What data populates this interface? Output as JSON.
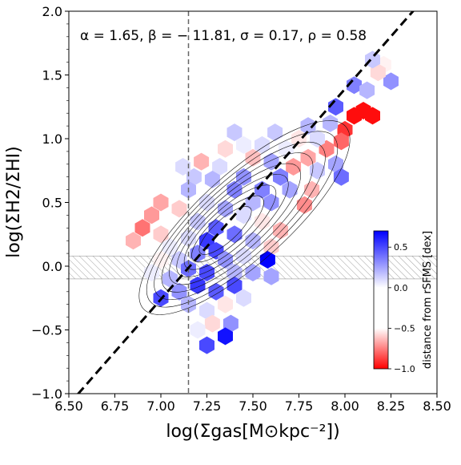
{
  "chart_data": {
    "type": "heatmap",
    "plot_style": "hexbin with contours",
    "xlabel": "log(Σgas[M⊙kpc⁻²])",
    "ylabel": "log(ΣH2/ΣHI)",
    "xlim": [
      6.5,
      8.5
    ],
    "ylim": [
      -1.0,
      2.0
    ],
    "x_ticks": [
      "6.50",
      "6.75",
      "7.00",
      "7.25",
      "7.50",
      "7.75",
      "8.00",
      "8.25",
      "8.50"
    ],
    "y_ticks": [
      "−1.0",
      "−0.5",
      "0.0",
      "0.5",
      "1.0",
      "1.5",
      "2.0"
    ],
    "annotation": "α = 1.65, β = − 11.81, σ = 0.17, ρ = 0.58",
    "fit_line": {
      "slope": 1.65,
      "intercept": -11.81,
      "style": "black dashed"
    },
    "vertical_line": {
      "x": 7.15,
      "style": "gray dashed"
    },
    "hatched_band": {
      "y_range": [
        -0.1,
        0.08
      ]
    },
    "colorbar": {
      "label": "distance from rSFMS [dex]",
      "range": [
        -1.0,
        0.7
      ],
      "ticks": [
        "0.5",
        "0.0",
        "−0.5",
        "−1.0"
      ],
      "colormap": "bwr"
    },
    "bins": [
      {
        "x": 8.25,
        "y": 1.45,
        "v": 0.3
      },
      {
        "x": 8.21,
        "y": 1.58,
        "v": -0.05
      },
      {
        "x": 8.18,
        "y": 1.52,
        "v": -0.15
      },
      {
        "x": 8.15,
        "y": 1.62,
        "v": 0.15
      },
      {
        "x": 8.05,
        "y": 1.42,
        "v": 0.35
      },
      {
        "x": 8.12,
        "y": 1.38,
        "v": 0.2
      },
      {
        "x": 8.1,
        "y": 1.22,
        "v": -0.95
      },
      {
        "x": 8.15,
        "y": 1.18,
        "v": -0.95
      },
      {
        "x": 8.05,
        "y": 1.18,
        "v": -0.95
      },
      {
        "x": 8.0,
        "y": 1.07,
        "v": -0.8
      },
      {
        "x": 7.95,
        "y": 1.25,
        "v": 0.45
      },
      {
        "x": 7.92,
        "y": 1.12,
        "v": 0.2
      },
      {
        "x": 7.98,
        "y": 0.98,
        "v": -0.6
      },
      {
        "x": 7.9,
        "y": 0.92,
        "v": -0.5
      },
      {
        "x": 7.85,
        "y": 1.0,
        "v": 0.1
      },
      {
        "x": 7.95,
        "y": 0.8,
        "v": 0.25
      },
      {
        "x": 7.98,
        "y": 0.7,
        "v": 0.4
      },
      {
        "x": 7.8,
        "y": 1.1,
        "v": 0.2
      },
      {
        "x": 7.75,
        "y": 1.0,
        "v": -0.1
      },
      {
        "x": 7.8,
        "y": 0.85,
        "v": -0.35
      },
      {
        "x": 7.85,
        "y": 0.75,
        "v": 0.15
      },
      {
        "x": 7.72,
        "y": 0.78,
        "v": -0.4
      },
      {
        "x": 7.68,
        "y": 0.92,
        "v": 0.05
      },
      {
        "x": 7.62,
        "y": 1.05,
        "v": 0.15
      },
      {
        "x": 7.55,
        "y": 0.95,
        "v": 0.1
      },
      {
        "x": 7.6,
        "y": 0.82,
        "v": 0.25
      },
      {
        "x": 7.65,
        "y": 0.7,
        "v": 0.35
      },
      {
        "x": 7.82,
        "y": 0.6,
        "v": -0.3
      },
      {
        "x": 7.78,
        "y": 0.48,
        "v": -0.45
      },
      {
        "x": 7.7,
        "y": 0.6,
        "v": 0.25
      },
      {
        "x": 7.5,
        "y": 0.85,
        "v": -0.25
      },
      {
        "x": 7.45,
        "y": 0.95,
        "v": 0.05
      },
      {
        "x": 7.4,
        "y": 1.05,
        "v": 0.15
      },
      {
        "x": 7.35,
        "y": 0.92,
        "v": -0.15
      },
      {
        "x": 7.32,
        "y": 0.78,
        "v": 0.1
      },
      {
        "x": 7.45,
        "y": 0.7,
        "v": 0.3
      },
      {
        "x": 7.55,
        "y": 0.6,
        "v": 0.35
      },
      {
        "x": 7.6,
        "y": 0.5,
        "v": 0.3
      },
      {
        "x": 7.5,
        "y": 0.5,
        "v": 0.2
      },
      {
        "x": 7.4,
        "y": 0.6,
        "v": 0.35
      },
      {
        "x": 7.28,
        "y": 0.68,
        "v": 0.2
      },
      {
        "x": 7.22,
        "y": 0.82,
        "v": -0.3
      },
      {
        "x": 7.18,
        "y": 0.7,
        "v": 0.15
      },
      {
        "x": 7.12,
        "y": 0.78,
        "v": 0.1
      },
      {
        "x": 7.15,
        "y": 0.6,
        "v": 0.2
      },
      {
        "x": 7.25,
        "y": 0.5,
        "v": 0.1
      },
      {
        "x": 7.35,
        "y": 0.45,
        "v": 0.25
      },
      {
        "x": 7.45,
        "y": 0.4,
        "v": 0.1
      },
      {
        "x": 7.55,
        "y": 0.35,
        "v": -0.1
      },
      {
        "x": 7.65,
        "y": 0.28,
        "v": -0.3
      },
      {
        "x": 7.6,
        "y": 0.15,
        "v": -0.2
      },
      {
        "x": 7.5,
        "y": 0.2,
        "v": 0.2
      },
      {
        "x": 7.4,
        "y": 0.25,
        "v": 0.4
      },
      {
        "x": 7.3,
        "y": 0.3,
        "v": 0.45
      },
      {
        "x": 7.2,
        "y": 0.35,
        "v": 0.15
      },
      {
        "x": 7.1,
        "y": 0.45,
        "v": -0.2
      },
      {
        "x": 7.0,
        "y": 0.5,
        "v": -0.35
      },
      {
        "x": 6.95,
        "y": 0.4,
        "v": -0.4
      },
      {
        "x": 6.9,
        "y": 0.3,
        "v": -0.55
      },
      {
        "x": 6.85,
        "y": 0.2,
        "v": -0.3
      },
      {
        "x": 7.0,
        "y": 0.25,
        "v": -0.2
      },
      {
        "x": 7.05,
        "y": 0.15,
        "v": 0.05
      },
      {
        "x": 7.15,
        "y": 0.22,
        "v": 0.1
      },
      {
        "x": 7.25,
        "y": 0.2,
        "v": 0.55
      },
      {
        "x": 7.3,
        "y": 0.12,
        "v": 0.5
      },
      {
        "x": 7.35,
        "y": 0.05,
        "v": 0.3
      },
      {
        "x": 7.2,
        "y": 0.1,
        "v": 0.35
      },
      {
        "x": 7.1,
        "y": 0.05,
        "v": 0.15
      },
      {
        "x": 7.0,
        "y": 0.05,
        "v": -0.05
      },
      {
        "x": 6.95,
        "y": -0.05,
        "v": 0.05
      },
      {
        "x": 7.05,
        "y": -0.1,
        "v": 0.2
      },
      {
        "x": 7.15,
        "y": -0.02,
        "v": 0.4
      },
      {
        "x": 7.25,
        "y": -0.05,
        "v": 0.5
      },
      {
        "x": 7.4,
        "y": -0.05,
        "v": 0.2
      },
      {
        "x": 7.5,
        "y": -0.05,
        "v": 0.25
      },
      {
        "x": 7.45,
        "y": 0.08,
        "v": 0.1
      },
      {
        "x": 7.58,
        "y": 0.05,
        "v": 0.7
      },
      {
        "x": 7.6,
        "y": -0.08,
        "v": 0.25
      },
      {
        "x": 7.2,
        "y": -0.15,
        "v": 0.55
      },
      {
        "x": 7.3,
        "y": -0.2,
        "v": 0.45
      },
      {
        "x": 7.4,
        "y": -0.15,
        "v": 0.5
      },
      {
        "x": 7.1,
        "y": -0.2,
        "v": 0.3
      },
      {
        "x": 7.0,
        "y": -0.25,
        "v": 0.5
      },
      {
        "x": 7.15,
        "y": -0.3,
        "v": 0.2
      },
      {
        "x": 7.25,
        "y": -0.35,
        "v": 0.1
      },
      {
        "x": 7.35,
        "y": -0.3,
        "v": -0.1
      },
      {
        "x": 7.45,
        "y": -0.25,
        "v": 0.1
      },
      {
        "x": 7.28,
        "y": -0.45,
        "v": -0.15
      },
      {
        "x": 7.38,
        "y": -0.45,
        "v": 0.3
      },
      {
        "x": 7.2,
        "y": -0.5,
        "v": 0.05
      },
      {
        "x": 7.35,
        "y": -0.55,
        "v": 0.65
      },
      {
        "x": 7.25,
        "y": -0.62,
        "v": 0.5
      }
    ]
  }
}
